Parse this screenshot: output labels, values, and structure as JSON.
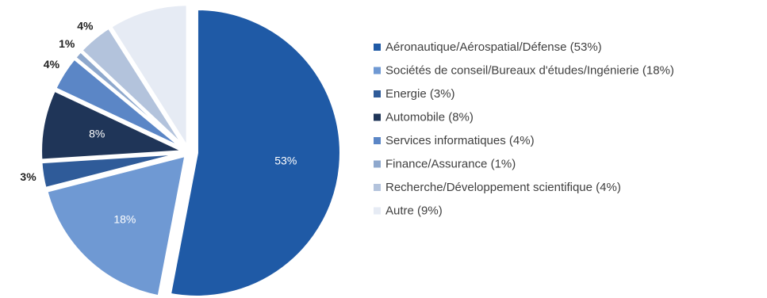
{
  "chart_data": {
    "type": "pie",
    "title": "",
    "series": [
      {
        "name": "Aéronautique/Aérospatial/Défense (53%)",
        "label": "53%",
        "value": 53,
        "color": "#1f5aa6"
      },
      {
        "name": "Sociétés de conseil/Bureaux d'études/Ingénierie (18%)",
        "label": "18%",
        "value": 18,
        "color": "#6f99d3"
      },
      {
        "name": "Energie (3%)",
        "label": "3%",
        "value": 3,
        "color": "#2f5b99"
      },
      {
        "name": "Automobile (8%)",
        "label": "8%",
        "value": 8,
        "color": "#1f3558"
      },
      {
        "name": "Services informatiques (4%)",
        "label": "4%",
        "value": 4,
        "color": "#5b86c6"
      },
      {
        "name": "Finance/Assurance (1%)",
        "label": "1%",
        "value": 1,
        "color": "#8ea8cd"
      },
      {
        "name": "Recherche/Développement scientifique (4%)",
        "label": "4%",
        "value": 4,
        "color": "#b3c3dc"
      },
      {
        "name": "Autre (9%)",
        "label": "9%",
        "value": 9,
        "color": "#e6ebf4"
      }
    ],
    "legend_position": "right"
  }
}
